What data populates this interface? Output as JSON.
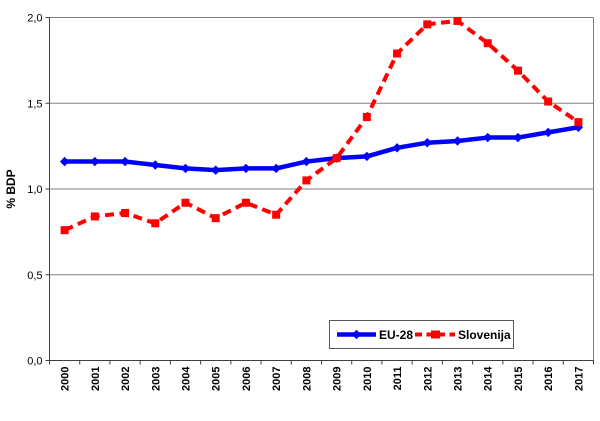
{
  "page": {
    "background_color": "#ffffff"
  },
  "chart_data": {
    "type": "line",
    "title": "",
    "xlabel": "",
    "ylabel": "% BDP",
    "ylim": [
      0.0,
      2.0
    ],
    "y_tick_step": 0.5,
    "y_tick_labels": [
      "0,0",
      "0,5",
      "1,0",
      "1,5",
      "2,0"
    ],
    "decimal_separator": ",",
    "grid": true,
    "gridline_color": "#808080",
    "axis_color": "#404040",
    "text_color": "#000000",
    "legend_position": "inside-bottom",
    "categories": [
      "2000",
      "2001",
      "2002",
      "2003",
      "2004",
      "2005",
      "2006",
      "2007",
      "2008",
      "2009",
      "2010",
      "2011",
      "2012",
      "2013",
      "2014",
      "2015",
      "2016",
      "2017"
    ],
    "series": [
      {
        "name": "EU-28",
        "color": "#0000FF",
        "line_style": "solid",
        "marker": "diamond",
        "values": [
          1.16,
          1.16,
          1.16,
          1.14,
          1.12,
          1.11,
          1.12,
          1.12,
          1.16,
          1.18,
          1.19,
          1.24,
          1.27,
          1.28,
          1.3,
          1.3,
          1.33,
          1.36
        ]
      },
      {
        "name": "Slovenija",
        "color": "#FF0000",
        "line_style": "dashed",
        "marker": "square",
        "values": [
          0.76,
          0.84,
          0.86,
          0.8,
          0.92,
          0.83,
          0.92,
          0.85,
          1.05,
          1.18,
          1.42,
          1.79,
          1.96,
          1.98,
          1.85,
          1.69,
          1.51,
          1.39
        ]
      }
    ]
  }
}
